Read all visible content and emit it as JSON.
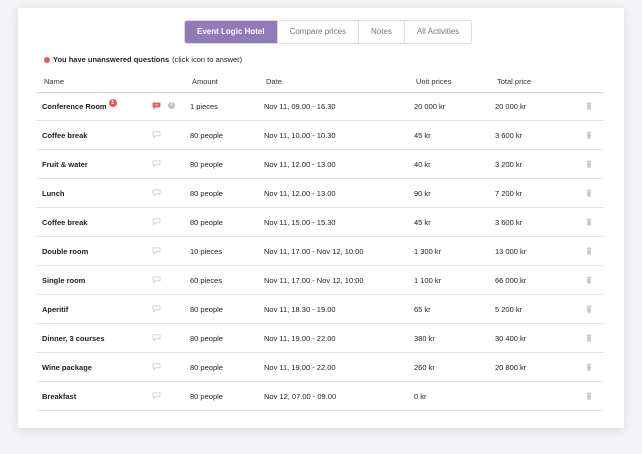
{
  "tabs": [
    {
      "label": "Event Logic Hotel",
      "active": true
    },
    {
      "label": "Compare prices",
      "active": false
    },
    {
      "label": "Notes",
      "active": false
    },
    {
      "label": "All Activities",
      "active": false
    }
  ],
  "notice": {
    "bold": "You have unanswered questions",
    "rest": "(click icon to answer)",
    "dot_color": "#e85a5a"
  },
  "headers": {
    "name": "Name",
    "amount": "Amount",
    "date": "Date",
    "unit": "Unit prices",
    "total": "Total price"
  },
  "rows": [
    {
      "name": "Conference Room",
      "badge": "1",
      "chat_active": true,
      "info": true,
      "amount": "1 pieces",
      "date": "Nov 11, 09.00 - 16.30",
      "unit": "20 000 kr",
      "total": "20 000 kr"
    },
    {
      "name": "Coffee break",
      "amount": "80 people",
      "date": "Nov 11, 10.00 - 10.30",
      "unit": "45 kr",
      "total": "3 600 kr"
    },
    {
      "name": "Fruit & water",
      "amount": "80 people",
      "date": "Nov 11, 12.00 - 13.00",
      "unit": "40 kr",
      "total": "3 200 kr"
    },
    {
      "name": "Lunch",
      "amount": "80 people",
      "date": "Nov 11, 12.00 - 13.00",
      "unit": "90 kr",
      "total": "7 200 kr"
    },
    {
      "name": "Coffee break",
      "amount": "80 people",
      "date": "Nov 11, 15.00 - 15.30",
      "unit": "45 kr",
      "total": "3 600 kr"
    },
    {
      "name": "Double room",
      "amount": "10 pieces",
      "date": "Nov 11, 17.00 - Nov 12, 10:00",
      "unit": "1 300 kr",
      "total": "13 000 kr"
    },
    {
      "name": "Single room",
      "amount": "60 pieces",
      "date": "Nov 11, 17.00 - Nov 12, 10:00",
      "unit": "1 100 kr",
      "total": "66 000 kr"
    },
    {
      "name": "Aperitif",
      "amount": "80 people",
      "date": "Nov 11, 18.30 - 19.00",
      "unit": "65 kr",
      "total": "5 200 kr"
    },
    {
      "name": "Dinner, 3 courses",
      "amount": "80 people",
      "date": "Nov 11, 19.00 - 22.00",
      "unit": "380 kr",
      "total": "30 400 kr"
    },
    {
      "name": "Wine package",
      "amount": "80 people",
      "date": "Nov 11, 19.00 - 22.00",
      "unit": "260 kr",
      "total": "20 800 kr"
    },
    {
      "name": "Breakfast",
      "amount": "80 people",
      "date": "Nov 12, 07.00 - 09.00",
      "unit": "0 kr",
      "total": ""
    }
  ],
  "colors": {
    "accent": "#8e7bb8",
    "alert": "#e85a5a"
  }
}
